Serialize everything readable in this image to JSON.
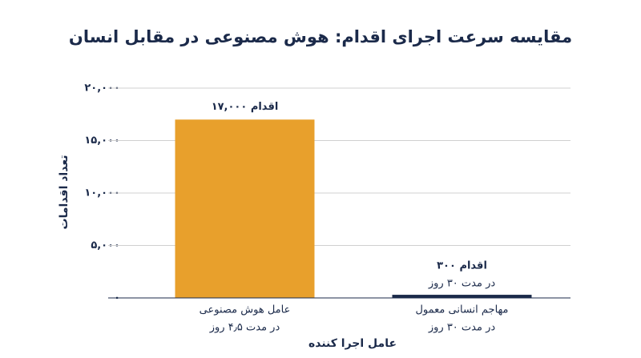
{
  "chart_data": {
    "type": "bar",
    "title": "مقایسه سرعت اجرای اقدام: هوش مصنوعی در مقابل انسان",
    "x_label": "عامل اجرا کننده",
    "y_label": "تعداد اقدامات",
    "categories": [
      "عامل هوش مصنوعی",
      "مهاجم انسانی معمول"
    ],
    "category_notes": [
      "در مدت ۴٫۵ روز",
      "در مدت ۳۰ روز"
    ],
    "values": [
      17000,
      300
    ],
    "value_labels": [
      "۱۷,۰۰۰ اقدام",
      "۳۰۰ اقدام"
    ],
    "annotations": [
      {
        "category": 1,
        "text": "در مدت ۳۰ روز"
      }
    ],
    "colors": [
      "#e8a02c",
      "#1b2a4a"
    ],
    "ylim": [
      0,
      20000
    ],
    "yticks": [
      {
        "value": 0,
        "label": "۰"
      },
      {
        "value": 5000,
        "label": "۵,۰۰۰"
      },
      {
        "value": 10000,
        "label": "۱۰,۰۰۰"
      },
      {
        "value": 15000,
        "label": "۱۵,۰۰۰"
      },
      {
        "value": 20000,
        "label": "۲۰,۰۰۰"
      }
    ],
    "grid": true
  }
}
